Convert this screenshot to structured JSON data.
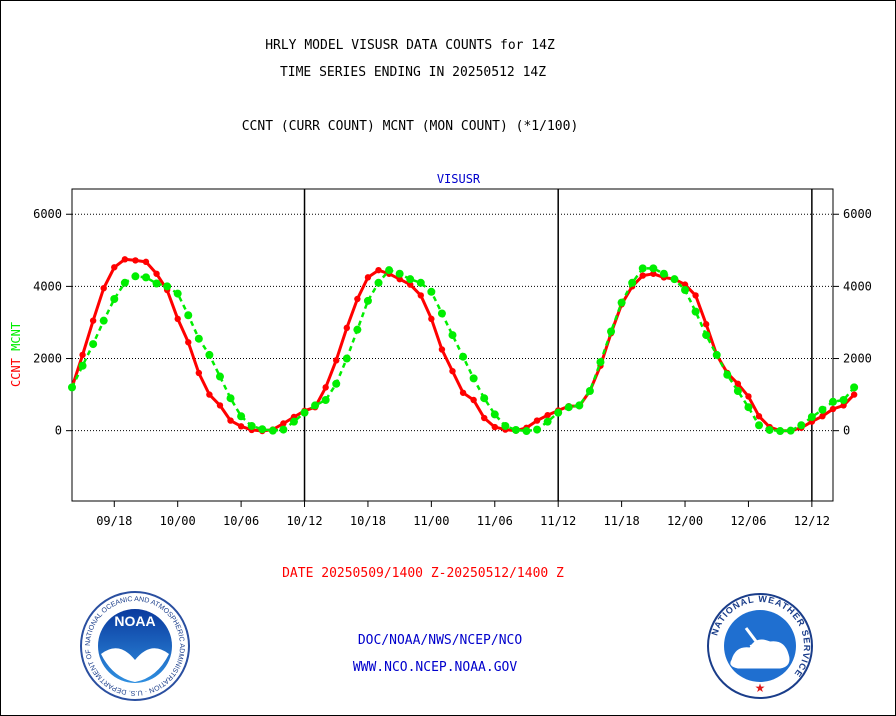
{
  "header": {
    "title_line1": "HRLY MODEL VISUSR DATA COUNTS for 14Z",
    "title_line2": "TIME SERIES ENDING IN 20250512 14Z",
    "subtitle": "CCNT (CURR COUNT) MCNT (MON COUNT) (*1/100)"
  },
  "footer": {
    "date_range": "DATE 20250509/1400 Z-20250512/1400 Z",
    "org_line": "DOC/NOAA/NWS/NCEP/NCO",
    "website": "WWW.NCO.NCEP.NOAA.GOV"
  },
  "logos": {
    "noaa": {
      "name": "NOAA",
      "ring_text": "NATIONAL OCEANIC AND ATMOSPHERIC ADMINISTRATION · U.S. DEPARTMENT OF COMMERCE"
    },
    "nws": {
      "ring_text": "NATIONAL WEATHER SERVICE"
    }
  },
  "colors": {
    "ccnt": "#ff0000",
    "mcnt": "#00ee00",
    "panel_title": "#0000cc"
  },
  "chart_data": {
    "type": "line",
    "panel_title": "VISUSR",
    "ylabel_parts": [
      {
        "text": "CCNT",
        "color": "#ff0000"
      },
      {
        "text": "MCNT",
        "color": "#00ee00"
      }
    ],
    "ylim": [
      -1950,
      6700
    ],
    "xlim": [
      0,
      72
    ],
    "yticks": [
      0,
      2000,
      4000,
      6000
    ],
    "ytick_labels": [
      "0",
      "2000",
      "4000",
      "6000"
    ],
    "xticks": [
      4,
      10,
      16,
      22,
      28,
      34,
      40,
      46,
      52,
      58,
      64,
      70
    ],
    "xtick_labels": [
      "09/18",
      "10/00",
      "10/06",
      "10/12",
      "10/18",
      "11/00",
      "11/06",
      "11/12",
      "11/18",
      "12/00",
      "12/06",
      "12/12"
    ],
    "day_boundaries": [
      22,
      46,
      70
    ],
    "grid": "horizontal dotted",
    "series": [
      {
        "name": "CCNT",
        "color": "#ff0000",
        "values": [
          1200,
          2100,
          3050,
          3950,
          4530,
          4750,
          4720,
          4680,
          4350,
          3900,
          3100,
          2450,
          1600,
          1000,
          700,
          280,
          120,
          20,
          -10,
          30,
          200,
          380,
          550,
          650,
          1200,
          1950,
          2850,
          3650,
          4250,
          4450,
          4350,
          4200,
          4050,
          3750,
          3100,
          2250,
          1650,
          1050,
          850,
          350,
          100,
          30,
          0,
          80,
          280,
          430,
          560,
          680,
          680,
          1100,
          1800,
          2700,
          3500,
          4000,
          4300,
          4350,
          4250,
          4200,
          4050,
          3750,
          2950,
          2100,
          1600,
          1300,
          950,
          400,
          100,
          0,
          0,
          80,
          250,
          400,
          600,
          700,
          1000
        ]
      },
      {
        "name": "MCNT",
        "color": "#00ee00",
        "values": [
          1200,
          1800,
          2400,
          3050,
          3650,
          4100,
          4280,
          4250,
          4080,
          4000,
          3800,
          3200,
          2550,
          2100,
          1500,
          900,
          400,
          130,
          40,
          0,
          30,
          250,
          500,
          700,
          850,
          1300,
          2000,
          2800,
          3600,
          4100,
          4450,
          4350,
          4200,
          4100,
          3850,
          3250,
          2650,
          2050,
          1450,
          900,
          450,
          130,
          20,
          -10,
          30,
          250,
          500,
          650,
          700,
          1100,
          1900,
          2750,
          3550,
          4100,
          4500,
          4500,
          4350,
          4200,
          3900,
          3300,
          2650,
          2100,
          1550,
          1100,
          650,
          150,
          20,
          -10,
          0,
          150,
          380,
          580,
          800,
          850,
          1200
        ]
      }
    ]
  }
}
